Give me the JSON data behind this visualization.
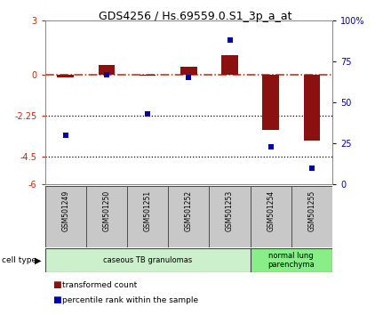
{
  "title": "GDS4256 / Hs.69559.0.S1_3p_a_at",
  "samples": [
    "GSM501249",
    "GSM501250",
    "GSM501251",
    "GSM501252",
    "GSM501253",
    "GSM501254",
    "GSM501255"
  ],
  "transformed_count": [
    -0.15,
    0.55,
    -0.05,
    0.45,
    1.1,
    -3.0,
    -3.6
  ],
  "percentile_rank": [
    30,
    67,
    43,
    65,
    88,
    23,
    10
  ],
  "ylim_left": [
    -6,
    3
  ],
  "ylim_right": [
    0,
    100
  ],
  "yticks_left": [
    -6,
    -4.5,
    -2.25,
    0,
    3
  ],
  "ytick_labels_left": [
    "-6",
    "-4.5",
    "-2.25",
    "0",
    "3"
  ],
  "yticks_right": [
    0,
    25,
    50,
    75,
    100
  ],
  "ytick_labels_right": [
    "0",
    "25",
    "50",
    "75",
    "100%"
  ],
  "hlines": [
    -2.25,
    -4.5
  ],
  "bar_color": "#8B1010",
  "dot_color": "#0000AA",
  "dashed_line_color": "#CC2200",
  "groups": [
    {
      "label": "caseous TB granulomas",
      "samples_idx": [
        0,
        1,
        2,
        3,
        4
      ],
      "color": "#ccf0cc"
    },
    {
      "label": "normal lung\nparenchyma",
      "samples_idx": [
        5,
        6
      ],
      "color": "#88ee88"
    }
  ],
  "cell_type_label": "cell type",
  "legend_items": [
    {
      "color": "#8B1010",
      "label": "transformed count"
    },
    {
      "color": "#0000AA",
      "label": "percentile rank within the sample"
    }
  ],
  "bg_color": "#ffffff",
  "plot_bg": "#ffffff",
  "sample_box_color": "#c8c8c8",
  "sample_box_edge": "#444444",
  "bar_width": 0.4
}
